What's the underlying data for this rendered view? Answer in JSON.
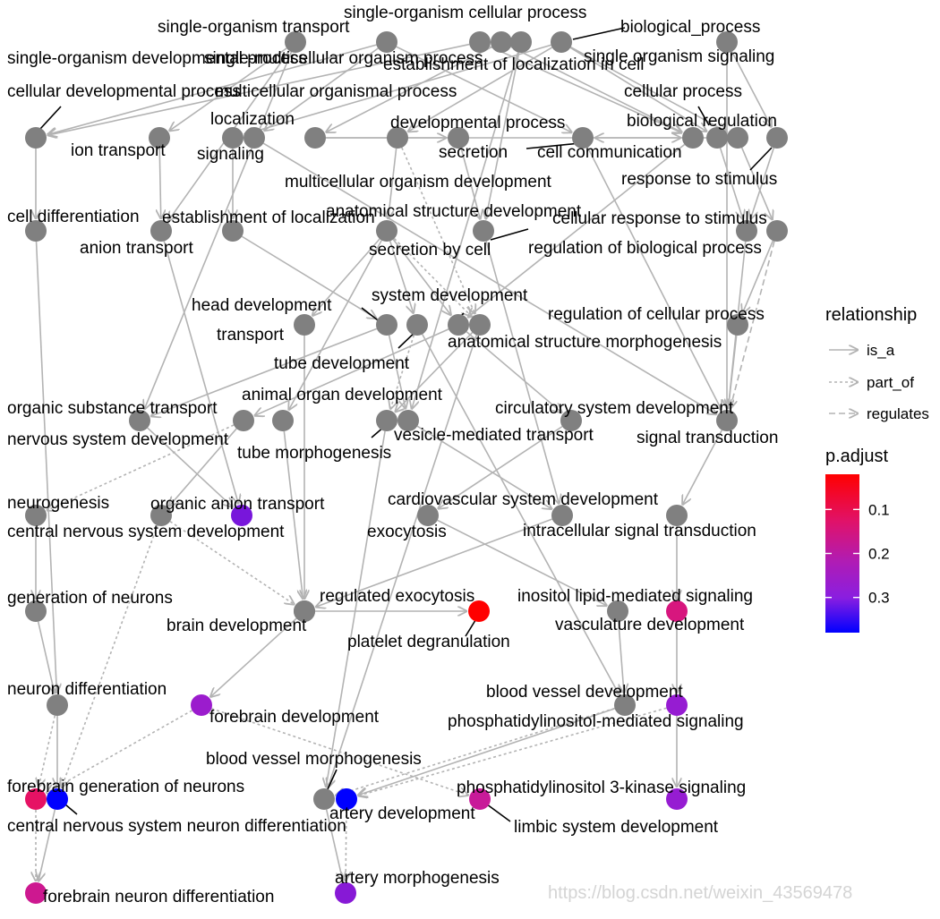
{
  "legend": {
    "relationship_title": "relationship",
    "relationships": [
      {
        "key": "is_a",
        "label": "is_a"
      },
      {
        "key": "part_of",
        "label": "part_of"
      },
      {
        "key": "regulates",
        "label": "regulates"
      }
    ],
    "padjust_title": "p.adjust",
    "padjust_ticks": [
      {
        "label": "0.1",
        "value": 0.1
      },
      {
        "label": "0.2",
        "value": 0.2
      },
      {
        "label": "0.3",
        "value": 0.3
      }
    ]
  },
  "watermark": "https://blog.csdn.net/weixin_43569478",
  "colors": {
    "node_grey": "#808080",
    "edge_grey": "#b3b3b3",
    "padjust_low": "#ff0000",
    "padjust_mid": "#a020c8",
    "padjust_high": "#0000ff"
  },
  "nodes": [
    {
      "label": "single-organism transport",
      "padjust": null
    },
    {
      "label": "single-organism cellular process",
      "padjust": null
    },
    {
      "label": "biological_process",
      "padjust": null
    },
    {
      "label": "single-organism developmental process",
      "padjust": null
    },
    {
      "label": "single-multicellular organism process",
      "padjust": null
    },
    {
      "label": "establishment of localization in cell",
      "padjust": null
    },
    {
      "label": "single organism signaling",
      "padjust": null
    },
    {
      "label": "cellular developmental process",
      "padjust": null
    },
    {
      "label": "multicellular organismal process",
      "padjust": null
    },
    {
      "label": "cellular process",
      "padjust": null
    },
    {
      "label": "localization",
      "padjust": null
    },
    {
      "label": "developmental process",
      "padjust": null
    },
    {
      "label": "biological regulation",
      "padjust": null
    },
    {
      "label": "ion transport",
      "padjust": null
    },
    {
      "label": "signaling",
      "padjust": null
    },
    {
      "label": "secretion",
      "padjust": null
    },
    {
      "label": "cell communication",
      "padjust": null
    },
    {
      "label": "multicellular organism development",
      "padjust": null
    },
    {
      "label": "response to stimulus",
      "padjust": null
    },
    {
      "label": "cell differentiation",
      "padjust": null
    },
    {
      "label": "establishment of localization",
      "padjust": null
    },
    {
      "label": "anatomical structure development",
      "padjust": null
    },
    {
      "label": "cellular response to stimulus",
      "padjust": null
    },
    {
      "label": "anion transport",
      "padjust": null
    },
    {
      "label": "secretion by cell",
      "padjust": null
    },
    {
      "label": "regulation of biological process",
      "padjust": null
    },
    {
      "label": "head development",
      "padjust": null
    },
    {
      "label": "system development",
      "padjust": null
    },
    {
      "label": "regulation of cellular process",
      "padjust": null
    },
    {
      "label": "transport",
      "padjust": null
    },
    {
      "label": "anatomical structure morphogenesis",
      "padjust": null
    },
    {
      "label": "tube development",
      "padjust": null
    },
    {
      "label": "animal organ development",
      "padjust": null
    },
    {
      "label": "organic substance transport",
      "padjust": null
    },
    {
      "label": "circulatory system development",
      "padjust": null
    },
    {
      "label": "nervous system development",
      "padjust": null
    },
    {
      "label": "vesicle-mediated transport",
      "padjust": null
    },
    {
      "label": "signal transduction",
      "padjust": null
    },
    {
      "label": "tube morphogenesis",
      "padjust": null
    },
    {
      "label": "neurogenesis",
      "padjust": null
    },
    {
      "label": "organic anion transport",
      "padjust": 0.3
    },
    {
      "label": "cardiovascular system development",
      "padjust": null
    },
    {
      "label": "central nervous system development",
      "padjust": null
    },
    {
      "label": "exocytosis",
      "padjust": null
    },
    {
      "label": "intracellular signal transduction",
      "padjust": null
    },
    {
      "label": "generation of neurons",
      "padjust": null
    },
    {
      "label": "regulated exocytosis",
      "padjust": null
    },
    {
      "label": "inositol lipid-mediated signaling",
      "padjust": 0.15
    },
    {
      "label": "brain development",
      "padjust": null
    },
    {
      "label": "platelet degranulation",
      "padjust": 0.02
    },
    {
      "label": "vasculature development",
      "padjust": null
    },
    {
      "label": "neuron differentiation",
      "padjust": null
    },
    {
      "label": "blood vessel development",
      "padjust": null
    },
    {
      "label": "forebrain development",
      "padjust": 0.27
    },
    {
      "label": "phosphatidylinositol-mediated signaling",
      "padjust": 0.28
    },
    {
      "label": "blood vessel morphogenesis",
      "padjust": null
    },
    {
      "label": "forebrain generation of neurons",
      "padjust": 0.12
    },
    {
      "label": "phosphatidylinositol 3-kinase signaling",
      "padjust": 0.28
    },
    {
      "label": "artery development",
      "padjust": 0.38
    },
    {
      "label": "limbic system development",
      "padjust": 0.18
    },
    {
      "label": "central nervous system neuron differentiation",
      "padjust": 0.38
    },
    {
      "label": "artery morphogenesis",
      "padjust": 0.29
    },
    {
      "label": "forebrain neuron differentiation",
      "padjust": 0.17
    }
  ],
  "edges": [
    {
      "from": "single-organism transport",
      "to": "ion transport",
      "type": "is_a"
    },
    {
      "from": "single-organism transport",
      "to": "anion transport",
      "type": "is_a"
    },
    {
      "from": "single-organism transport",
      "to": "organic substance transport",
      "type": "is_a"
    },
    {
      "from": "single-organism cellular process",
      "to": "cellular developmental process",
      "type": "is_a"
    },
    {
      "from": "single-organism cellular process",
      "to": "signaling",
      "type": "is_a"
    },
    {
      "from": "single-organism cellular process",
      "to": "cell communication",
      "type": "is_a"
    },
    {
      "from": "biological_process",
      "to": "cellular process",
      "type": "is_a"
    },
    {
      "from": "biological_process",
      "to": "biological regulation",
      "type": "is_a"
    },
    {
      "from": "biological_process",
      "to": "localization",
      "type": "is_a"
    },
    {
      "from": "biological_process",
      "to": "developmental process",
      "type": "is_a"
    },
    {
      "from": "single-organism developmental process",
      "to": "cellular developmental process",
      "type": "is_a"
    },
    {
      "from": "single-organism developmental process",
      "to": "multicellular organism development",
      "type": "is_a"
    },
    {
      "from": "single-multicellular organism process",
      "to": "multicellular organism development",
      "type": "is_a"
    },
    {
      "from": "single-multicellular organism process",
      "to": "multicellular organismal process",
      "type": "is_a"
    },
    {
      "from": "establishment of localization in cell",
      "to": "secretion by cell",
      "type": "is_a"
    },
    {
      "from": "establishment of localization in cell",
      "to": "vesicle-mediated transport",
      "type": "is_a"
    },
    {
      "from": "single organism signaling",
      "to": "signal transduction",
      "type": "is_a"
    },
    {
      "from": "single organism signaling",
      "to": "response to stimulus",
      "type": "is_a"
    },
    {
      "from": "cellular developmental process",
      "to": "cell differentiation",
      "type": "is_a"
    },
    {
      "from": "multicellular organismal process",
      "to": "multicellular organism development",
      "type": "is_a"
    },
    {
      "from": "multicellular organismal process",
      "to": "secretion",
      "type": "is_a"
    },
    {
      "from": "cellular process",
      "to": "cellular response to stimulus",
      "type": "is_a"
    },
    {
      "from": "cellular process",
      "to": "cell communication",
      "type": "is_a"
    },
    {
      "from": "localization",
      "to": "establishment of localization",
      "type": "is_a"
    },
    {
      "from": "developmental process",
      "to": "anatomical structure development",
      "type": "is_a"
    },
    {
      "from": "developmental process",
      "to": "anatomical structure morphogenesis",
      "type": "part_of"
    },
    {
      "from": "biological regulation",
      "to": "regulation of biological process",
      "type": "is_a"
    },
    {
      "from": "ion transport",
      "to": "anion transport",
      "type": "is_a"
    },
    {
      "from": "signaling",
      "to": "signal transduction",
      "type": "is_a"
    },
    {
      "from": "secretion",
      "to": "secretion by cell",
      "type": "is_a"
    },
    {
      "from": "cell communication",
      "to": "signal transduction",
      "type": "is_a"
    },
    {
      "from": "multicellular organism development",
      "to": "system development",
      "type": "is_a"
    },
    {
      "from": "response to stimulus",
      "to": "cellular response to stimulus",
      "type": "is_a"
    },
    {
      "from": "cell differentiation",
      "to": "neuron differentiation",
      "type": "is_a"
    },
    {
      "from": "establishment of localization",
      "to": "transport",
      "type": "is_a"
    },
    {
      "from": "anatomical structure development",
      "to": "system development",
      "type": "is_a"
    },
    {
      "from": "anatomical structure development",
      "to": "tube development",
      "type": "is_a"
    },
    {
      "from": "anatomical structure development",
      "to": "head development",
      "type": "is_a"
    },
    {
      "from": "anatomical structure development",
      "to": "animal organ development",
      "type": "is_a"
    },
    {
      "from": "anatomical structure development",
      "to": "anatomical structure morphogenesis",
      "type": "part_of"
    },
    {
      "from": "cellular response to stimulus",
      "to": "signal transduction",
      "type": "is_a"
    },
    {
      "from": "anion transport",
      "to": "organic anion transport",
      "type": "is_a"
    },
    {
      "from": "secretion by cell",
      "to": "exocytosis",
      "type": "is_a"
    },
    {
      "from": "regulation of biological process",
      "to": "regulation of cellular process",
      "type": "is_a"
    },
    {
      "from": "regulation of biological process",
      "to": "signal transduction",
      "type": "regulates"
    },
    {
      "from": "head development",
      "to": "brain development",
      "type": "is_a"
    },
    {
      "from": "system development",
      "to": "nervous system development",
      "type": "is_a"
    },
    {
      "from": "system development",
      "to": "circulatory system development",
      "type": "is_a"
    },
    {
      "from": "regulation of cellular process",
      "to": "signal transduction",
      "type": "is_a"
    },
    {
      "from": "transport",
      "to": "organic substance transport",
      "type": "is_a"
    },
    {
      "from": "transport",
      "to": "vesicle-mediated transport",
      "type": "is_a"
    },
    {
      "from": "anatomical structure morphogenesis",
      "to": "tube morphogenesis",
      "type": "is_a"
    },
    {
      "from": "anatomical structure morphogenesis",
      "to": "blood vessel morphogenesis",
      "type": "is_a"
    },
    {
      "from": "tube development",
      "to": "tube morphogenesis",
      "type": "part_of"
    },
    {
      "from": "tube development",
      "to": "blood vessel development",
      "type": "is_a"
    },
    {
      "from": "animal organ development",
      "to": "brain development",
      "type": "is_a"
    },
    {
      "from": "organic substance transport",
      "to": "organic anion transport",
      "type": "is_a"
    },
    {
      "from": "circulatory system development",
      "to": "cardiovascular system development",
      "type": "is_a"
    },
    {
      "from": "nervous system development",
      "to": "central nervous system development",
      "type": "is_a"
    },
    {
      "from": "nervous system development",
      "to": "neurogenesis",
      "type": "part_of"
    },
    {
      "from": "vesicle-mediated transport",
      "to": "exocytosis",
      "type": "is_a"
    },
    {
      "from": "signal transduction",
      "to": "intracellular signal transduction",
      "type": "is_a"
    },
    {
      "from": "tube morphogenesis",
      "to": "blood vessel morphogenesis",
      "type": "is_a"
    },
    {
      "from": "neurogenesis",
      "to": "generation of neurons",
      "type": "is_a"
    },
    {
      "from": "cardiovascular system development",
      "to": "vasculature development",
      "type": "is_a"
    },
    {
      "from": "central nervous system development",
      "to": "brain development",
      "type": "part_of"
    },
    {
      "from": "central nervous system development",
      "to": "central nervous system neuron differentiation",
      "type": "part_of"
    },
    {
      "from": "exocytosis",
      "to": "regulated exocytosis",
      "type": "is_a"
    },
    {
      "from": "intracellular signal transduction",
      "to": "inositol lipid-mediated signaling",
      "type": "is_a"
    },
    {
      "from": "generation of neurons",
      "to": "neuron differentiation",
      "type": "is_a"
    },
    {
      "from": "inositol lipid-mediated signaling",
      "to": "phosphatidylinositol-mediated signaling",
      "type": "is_a"
    },
    {
      "from": "brain development",
      "to": "forebrain development",
      "type": "is_a"
    },
    {
      "from": "regulated exocytosis",
      "to": "platelet degranulation",
      "type": "is_a"
    },
    {
      "from": "vasculature development",
      "to": "blood vessel development",
      "type": "is_a"
    },
    {
      "from": "neuron differentiation",
      "to": "central nervous system neuron differentiation",
      "type": "is_a"
    },
    {
      "from": "neuron differentiation",
      "to": "forebrain generation of neurons",
      "type": "part_of"
    },
    {
      "from": "blood vessel development",
      "to": "artery development",
      "type": "is_a"
    },
    {
      "from": "blood vessel development",
      "to": "blood vessel morphogenesis",
      "type": "part_of"
    },
    {
      "from": "forebrain development",
      "to": "forebrain generation of neurons",
      "type": "part_of"
    },
    {
      "from": "forebrain development",
      "to": "limbic system development",
      "type": "part_of"
    },
    {
      "from": "phosphatidylinositol-mediated signaling",
      "to": "phosphatidylinositol 3-kinase signaling",
      "type": "is_a"
    },
    {
      "from": "phosphatidylinositol-mediated signaling",
      "to": "artery development",
      "type": "part_of"
    },
    {
      "from": "blood vessel morphogenesis",
      "to": "artery morphogenesis",
      "type": "is_a"
    },
    {
      "from": "artery development",
      "to": "artery morphogenesis",
      "type": "part_of"
    },
    {
      "from": "forebrain generation of neurons",
      "to": "forebrain neuron differentiation",
      "type": "part_of"
    },
    {
      "from": "central nervous system neuron differentiation",
      "to": "forebrain neuron differentiation",
      "type": "is_a"
    }
  ]
}
